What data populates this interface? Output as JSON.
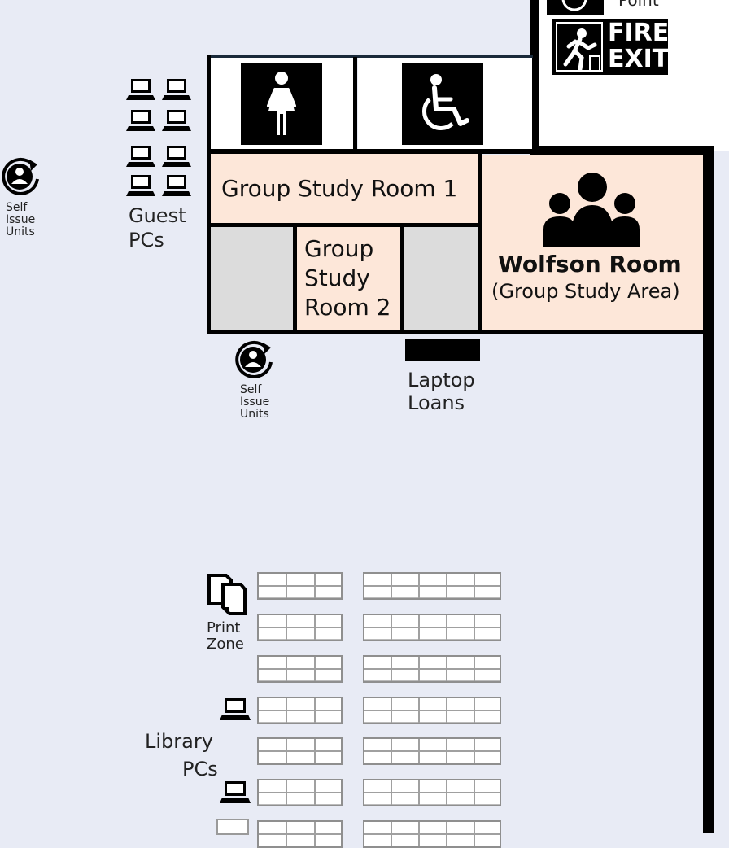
{
  "labels": {
    "assembly_point_tail": "Point",
    "fire_exit_line1": "FIRE",
    "fire_exit_line2": "EXIT",
    "group_study_room_1": "Group Study Room 1",
    "group_study_room_2_line1": "Group",
    "group_study_room_2_line2": "Study",
    "group_study_room_2_line3": "Room 2",
    "wolfson_room_title": "Wolfson Room",
    "wolfson_room_sub": "(Group Study Area)",
    "guest_pcs_line1": "Guest",
    "guest_pcs_line2": "PCs",
    "self_issue_line1": "Self",
    "self_issue_line2": "Issue",
    "self_issue_line3": "Units",
    "laptop_loans_line1": "Laptop",
    "laptop_loans_line2": "Loans",
    "print_zone_line1": "Print",
    "print_zone_line2": "Zone",
    "library_pcs_line1": "Library",
    "library_pcs_line2": "PCs"
  },
  "icons": {
    "womens_toilet": "female-toilet-icon",
    "accessible_toilet": "wheelchair-icon",
    "fire_exit": "fire-exit-icon",
    "assembly_point": "assembly-point-icon",
    "group": "group-icon",
    "self_issue": "self-issue-icon",
    "laptop": "laptop-icon",
    "printer": "print-icon"
  },
  "colors": {
    "floor": "#e8ebf5",
    "study_room": "#fde7d9",
    "store_room": "#dcdcdc",
    "wall": "#000000"
  }
}
